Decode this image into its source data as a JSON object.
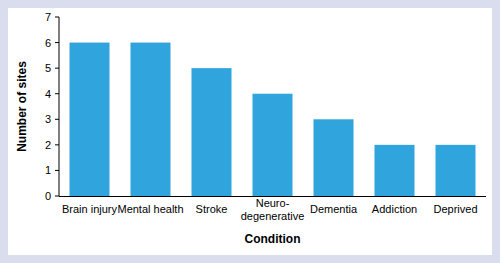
{
  "chart_data": {
    "type": "bar",
    "x_label": "Condition",
    "y_label": "Number of sites",
    "categories": [
      "Brain injury",
      "Mental health",
      "Stroke",
      "Neuro-degenerative",
      "Dementia",
      "Addiction",
      "Deprived"
    ],
    "values": [
      6,
      6,
      5,
      4,
      3,
      2,
      2
    ],
    "color": "#2fa4dd",
    "ylim": [
      0,
      7
    ],
    "yticks": [
      0,
      1,
      2,
      3,
      4,
      5,
      6,
      7
    ],
    "grid": false
  }
}
